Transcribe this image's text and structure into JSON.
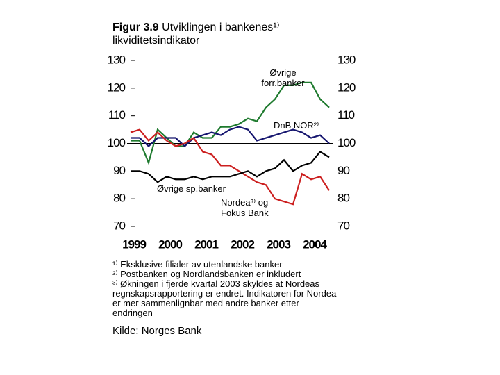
{
  "chart_data": {
    "type": "line",
    "title_label": "Figur 3.9",
    "title": "Utviklingen i bankenes¹⁾ likviditetsindikator",
    "categories": [
      "1999",
      null,
      null,
      null,
      "2000",
      null,
      null,
      null,
      "2001",
      null,
      null,
      null,
      "2002",
      null,
      null,
      null,
      "2003",
      null,
      null,
      null,
      "2004",
      null,
      null
    ],
    "series": [
      {
        "name": "Øvrige forr.banker",
        "color": "#1e7a2e",
        "values": [
          101,
          101,
          93,
          105,
          102,
          99,
          99,
          104,
          102,
          102,
          106,
          106,
          107,
          109,
          108,
          113,
          116,
          121,
          121,
          122,
          122,
          116,
          113
        ]
      },
      {
        "name": "DnB NOR²⁾",
        "color": "#14146e",
        "values": [
          102,
          102,
          99,
          102,
          102,
          102,
          99,
          102,
          103,
          104,
          103,
          105,
          106,
          105,
          101,
          102,
          103,
          104,
          105,
          104,
          102,
          103,
          100
        ]
      },
      {
        "name": "Nordea³⁾ og Fokus Bank",
        "color": "#cc1f1f",
        "values": [
          104,
          105,
          101,
          104,
          101,
          99,
          100,
          102,
          97,
          96,
          92,
          92,
          90,
          88,
          86,
          85,
          80,
          79,
          78,
          89,
          87,
          88,
          83
        ]
      },
      {
        "name": "Øvrige sp.banker",
        "color": "#000000",
        "values": [
          90,
          90,
          89,
          86,
          88,
          87,
          87,
          88,
          87,
          88,
          88,
          88,
          89,
          90,
          88,
          90,
          91,
          94,
          90,
          92,
          93,
          97,
          95
        ]
      }
    ],
    "ylim": [
      70,
      130
    ],
    "yticks": [
      70,
      80,
      90,
      100,
      110,
      120,
      130
    ],
    "y2lim": [
      70,
      130
    ],
    "y2ticks": [
      70,
      80,
      90,
      100,
      110,
      120,
      130
    ],
    "reference_line": 100,
    "notes": [
      "¹⁾ Eksklusive filialer av utenlandske banker",
      "²⁾ Postbanken og Nordlandsbanken er inkludert",
      "³⁾ Økningen i fjerde kvartal 2003 skyldes at Nordeas regnskapsrapportering er endret. Indikatoren for Nordea er mer sammenlignbar med andre banker etter endringen"
    ],
    "source": "Kilde: Norges Bank"
  }
}
